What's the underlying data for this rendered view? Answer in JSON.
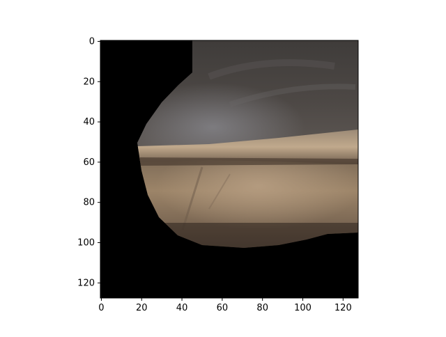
{
  "figure": {
    "background": "#ffffff",
    "frame_color": "#000000"
  },
  "image": {
    "description_colors": {
      "mask": "#000000",
      "ceiling": "#4a443f",
      "ceiling_highlight": "#6b6a6c",
      "ledge": "#a89276",
      "floor": "#8a7560",
      "floor_glow": "#b29a7e"
    },
    "extent": {
      "x": [
        0,
        128
      ],
      "y": [
        0,
        128
      ]
    }
  },
  "axes": {
    "x_ticks": [
      {
        "value": 0,
        "label": "0"
      },
      {
        "value": 20,
        "label": "20"
      },
      {
        "value": 40,
        "label": "40"
      },
      {
        "value": 60,
        "label": "60"
      },
      {
        "value": 80,
        "label": "80"
      },
      {
        "value": 100,
        "label": "100"
      },
      {
        "value": 120,
        "label": "120"
      }
    ],
    "y_ticks": [
      {
        "value": 0,
        "label": "0"
      },
      {
        "value": 20,
        "label": "20"
      },
      {
        "value": 40,
        "label": "40"
      },
      {
        "value": 60,
        "label": "60"
      },
      {
        "value": 80,
        "label": "80"
      },
      {
        "value": 100,
        "label": "100"
      },
      {
        "value": 120,
        "label": "120"
      }
    ]
  }
}
